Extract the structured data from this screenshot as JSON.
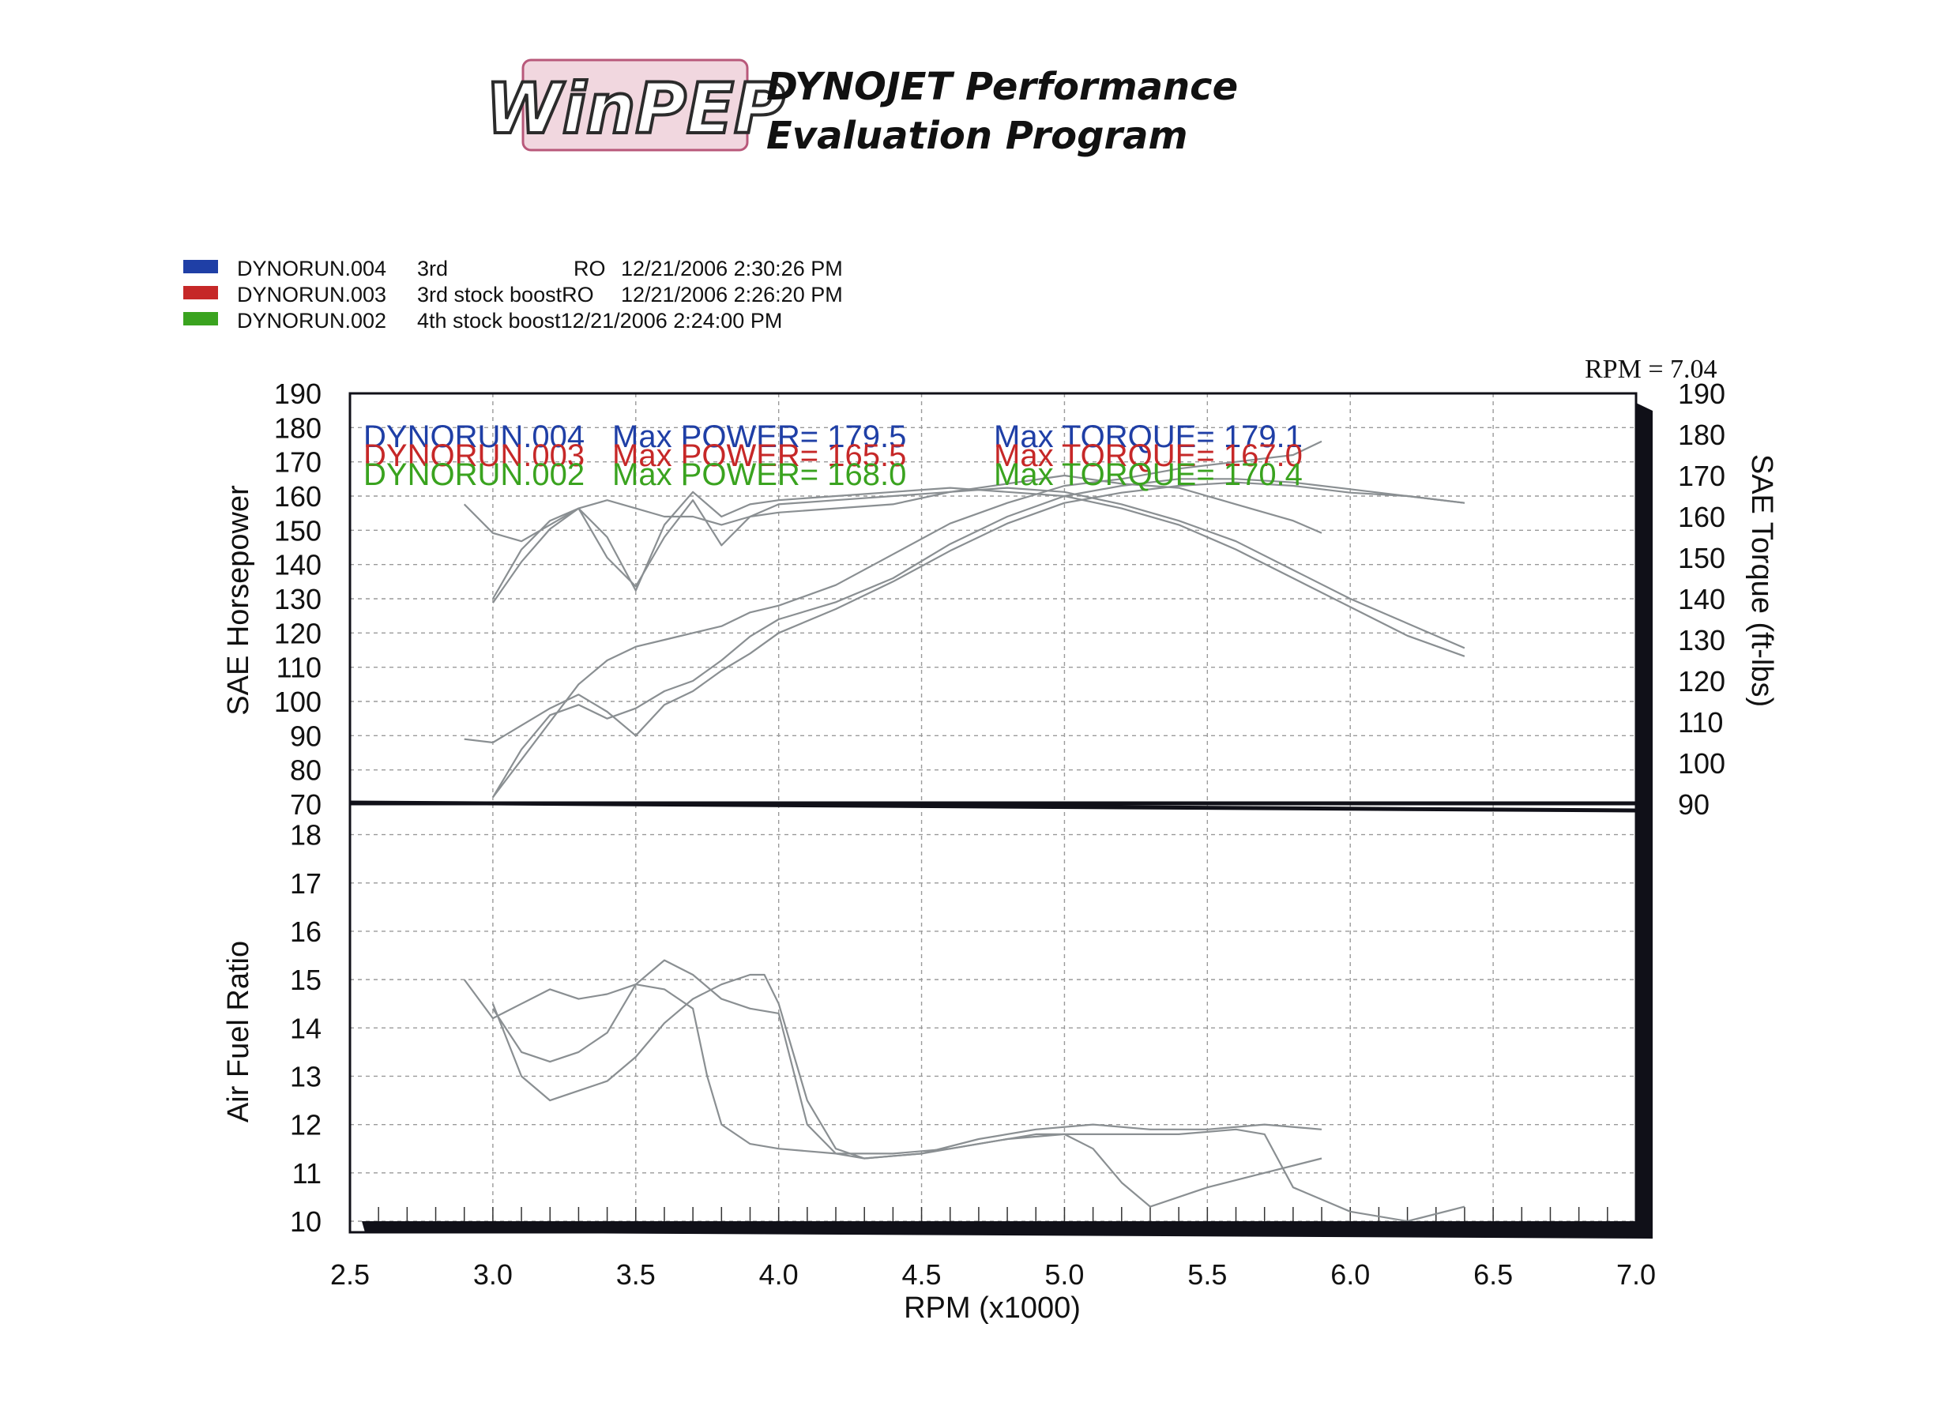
{
  "header": {
    "logo_text": "WinPEP",
    "title_line1": "DYNOJET Performance",
    "title_line2": "Evaluation Program"
  },
  "colors": {
    "blue": "#1f3fa6",
    "red": "#c62828",
    "green": "#3aa31f",
    "curve": "#8a8f92",
    "grid": "#9a9a9a",
    "frame": "#101018"
  },
  "legend": [
    {
      "file": "DYNORUN.004",
      "desc": "3rd",
      "extra": "RO",
      "stamp": "12/21/2006 2:30:26 PM",
      "color": "#1f3fa6"
    },
    {
      "file": "DYNORUN.003",
      "desc": "3rd stock boostRO",
      "extra": "",
      "stamp": "12/21/2006 2:26:20 PM",
      "color": "#c62828"
    },
    {
      "file": "DYNORUN.002",
      "desc": "4th stock boost12/21/2006 2:24:00 PM",
      "extra": "",
      "stamp": "",
      "color": "#3aa31f"
    }
  ],
  "rpm_readout": "RPM = 7.04",
  "annotations": [
    {
      "run": "DYNORUN.004",
      "power": "Max POWER= 179.5",
      "torque": "Max TORQUE= 179.1",
      "color": "#1f3fa6"
    },
    {
      "run": "DYNORUN.003",
      "power": "Max POWER= 165.5",
      "torque": "Max TORQUE= 167.0",
      "color": "#c62828"
    },
    {
      "run": "DYNORUN.002",
      "power": "Max POWER= 168.0",
      "torque": "Max TORQUE= 170.4",
      "color": "#3aa31f"
    }
  ],
  "chart_data": {
    "type": "line",
    "xlabel": "RPM (x1000)",
    "x_ticks": [
      "2.5",
      "3.0",
      "3.5",
      "4.0",
      "4.5",
      "5.0",
      "5.5",
      "6.0",
      "6.5",
      "7.0"
    ],
    "xlim": [
      2.5,
      7.0
    ],
    "top_panel": {
      "ylabel_left": "SAE Horsepower",
      "ylabel_right": "SAE Torque (ft-lbs)",
      "ylim_left": [
        70,
        190
      ],
      "ylim_right": [
        90,
        190
      ],
      "left_ticks": [
        "190",
        "180",
        "170",
        "160",
        "150",
        "140",
        "130",
        "120",
        "110",
        "100",
        "90",
        "80",
        "70"
      ],
      "right_ticks": [
        "190",
        "180",
        "170",
        "160",
        "150",
        "140",
        "130",
        "120",
        "110",
        "100",
        "90"
      ],
      "series": [
        {
          "kind": "hp",
          "x": [
            3.0,
            3.1,
            3.2,
            3.3,
            3.4,
            3.5,
            3.6,
            3.7,
            3.8,
            3.9,
            4.0,
            4.2,
            4.4,
            4.6,
            4.8,
            5.0,
            5.2,
            5.4,
            5.6,
            5.8,
            5.9
          ],
          "y": [
            72,
            83,
            94,
            105,
            112,
            116,
            118,
            120,
            122,
            126,
            128,
            134,
            143,
            152,
            158,
            163,
            165,
            168,
            170,
            172,
            176
          ]
        },
        {
          "kind": "hp",
          "x": [
            3.0,
            3.1,
            3.2,
            3.3,
            3.4,
            3.5,
            3.6,
            3.7,
            3.8,
            3.9,
            4.0,
            4.2,
            4.4,
            4.6,
            4.8,
            5.0,
            5.2,
            5.4,
            5.6,
            5.8,
            6.0,
            6.2,
            6.4
          ],
          "y": [
            72,
            86,
            96,
            99,
            95,
            98,
            103,
            106,
            112,
            119,
            124,
            129,
            136,
            146,
            154,
            160,
            163,
            165,
            165,
            164,
            162,
            160,
            158
          ]
        },
        {
          "kind": "hp",
          "x": [
            2.9,
            3.0,
            3.1,
            3.2,
            3.3,
            3.4,
            3.5,
            3.6,
            3.7,
            3.8,
            3.9,
            4.0,
            4.2,
            4.4,
            4.6,
            4.8,
            5.0,
            5.2,
            5.4,
            5.6,
            5.8,
            6.0,
            6.2,
            6.4
          ],
          "y": [
            89,
            88,
            93,
            98,
            102,
            97,
            90,
            99,
            103,
            109,
            114,
            120,
            127,
            135,
            144,
            152,
            158,
            161,
            163,
            164,
            163,
            161,
            160,
            158
          ]
        },
        {
          "kind": "tq",
          "x": [
            3.0,
            3.1,
            3.2,
            3.3,
            3.4,
            3.5,
            3.6,
            3.7,
            3.8,
            3.9,
            4.0,
            4.2,
            4.4,
            4.6,
            4.8,
            5.0,
            5.2,
            5.4,
            5.6,
            5.8,
            5.9
          ],
          "y": [
            139,
            149,
            157,
            162,
            164,
            162,
            160,
            160,
            158,
            160,
            161,
            162,
            163,
            166,
            168,
            170,
            168,
            167,
            163,
            159,
            156
          ]
        },
        {
          "kind": "tq",
          "x": [
            3.0,
            3.1,
            3.2,
            3.3,
            3.4,
            3.5,
            3.6,
            3.7,
            3.8,
            3.9,
            4.0,
            4.2,
            4.4,
            4.6,
            4.8,
            5.0,
            5.2,
            5.4,
            5.6,
            5.8,
            6.0,
            6.2,
            6.4
          ],
          "y": [
            140,
            152,
            159,
            162,
            155,
            142,
            158,
            166,
            160,
            163,
            164,
            165,
            166,
            167,
            166,
            165,
            162,
            158,
            152,
            145,
            138,
            131,
            126
          ]
        },
        {
          "kind": "tq",
          "x": [
            2.9,
            3.0,
            3.1,
            3.2,
            3.3,
            3.4,
            3.5,
            3.6,
            3.7,
            3.8,
            3.9,
            4.0,
            4.2,
            4.4,
            4.6,
            4.8,
            5.0,
            5.2,
            5.4,
            5.6,
            5.8,
            6.0,
            6.2,
            6.4
          ],
          "y": [
            163,
            156,
            154,
            158,
            162,
            150,
            143,
            155,
            164,
            153,
            160,
            163,
            164,
            165,
            166,
            167,
            166,
            163,
            159,
            154,
            147,
            140,
            134,
            128
          ]
        }
      ]
    },
    "bottom_panel": {
      "ylabel": "Air Fuel Ratio",
      "ylim": [
        10,
        18.5
      ],
      "ticks": [
        "18",
        "17",
        "16",
        "15",
        "14",
        "13",
        "12",
        "11",
        "10"
      ],
      "series": [
        {
          "x": [
            3.0,
            3.1,
            3.2,
            3.3,
            3.4,
            3.5,
            3.6,
            3.7,
            3.8,
            3.9,
            3.95,
            4.0,
            4.1,
            4.2,
            4.3,
            4.5,
            4.7,
            4.9,
            5.0,
            5.1,
            5.2,
            5.3,
            5.5,
            5.7,
            5.9
          ],
          "y": [
            14.5,
            13.0,
            12.5,
            12.7,
            12.9,
            13.4,
            14.1,
            14.6,
            14.9,
            15.1,
            15.1,
            14.5,
            12.5,
            11.5,
            11.3,
            11.4,
            11.6,
            11.8,
            11.8,
            11.5,
            10.8,
            10.3,
            10.7,
            11.0,
            11.3
          ]
        },
        {
          "x": [
            3.0,
            3.1,
            3.2,
            3.3,
            3.4,
            3.5,
            3.6,
            3.7,
            3.8,
            3.9,
            4.0,
            4.1,
            4.2,
            4.3,
            4.5,
            4.7,
            4.9,
            5.1,
            5.3,
            5.5,
            5.7,
            5.9
          ],
          "y": [
            14.4,
            13.5,
            13.3,
            13.5,
            13.9,
            14.9,
            15.4,
            15.1,
            14.6,
            14.4,
            14.3,
            12.0,
            11.4,
            11.3,
            11.4,
            11.7,
            11.9,
            12.0,
            11.9,
            11.9,
            12.0,
            11.9
          ]
        },
        {
          "x": [
            2.9,
            3.0,
            3.1,
            3.2,
            3.3,
            3.4,
            3.5,
            3.6,
            3.7,
            3.75,
            3.8,
            3.9,
            4.0,
            4.2,
            4.4,
            4.6,
            4.8,
            5.0,
            5.2,
            5.4,
            5.6,
            5.7,
            5.8,
            6.0,
            6.2,
            6.4
          ],
          "y": [
            15.0,
            14.2,
            14.5,
            14.8,
            14.6,
            14.7,
            14.9,
            14.8,
            14.4,
            13.0,
            12.0,
            11.6,
            11.5,
            11.4,
            11.4,
            11.5,
            11.7,
            11.8,
            11.8,
            11.8,
            11.9,
            11.8,
            10.7,
            10.2,
            10.0,
            10.3
          ]
        }
      ]
    },
    "grid": true
  }
}
